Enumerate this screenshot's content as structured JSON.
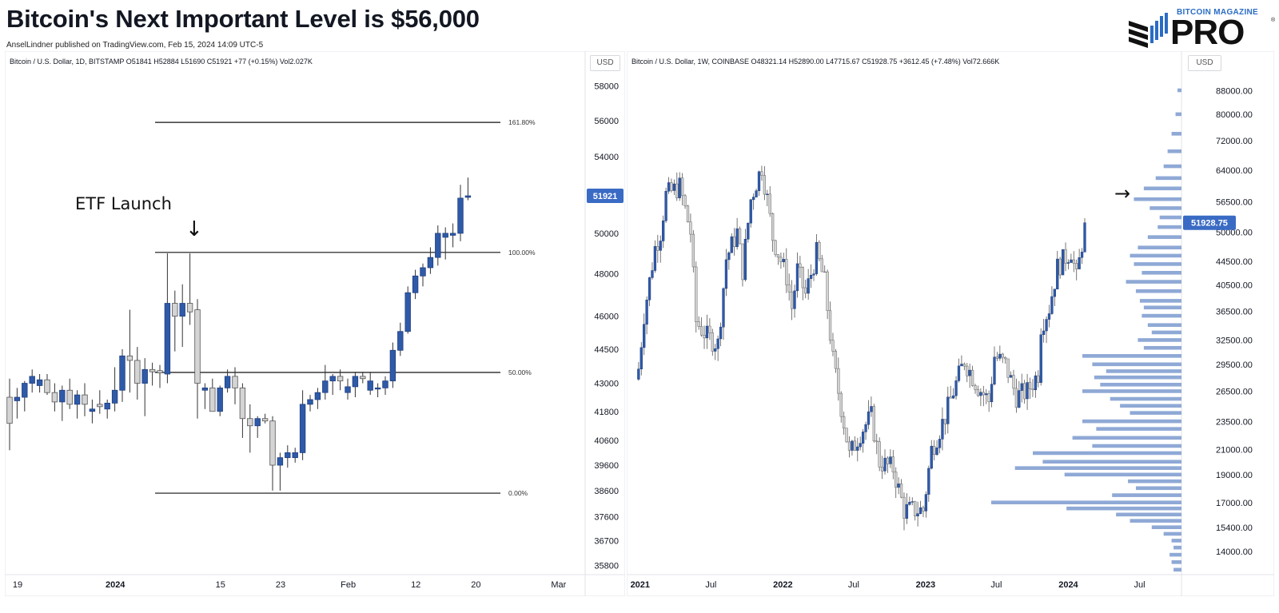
{
  "header": {
    "title": "Bitcoin's Next Important Level is $56,000",
    "subtitle": "AnselLindner published on TradingView.com, Feb 15, 2024 14:09 UTC-5"
  },
  "logo": {
    "top_text": "BITCOIN MAGAZINE",
    "main_text": "PRO",
    "reg_mark": "®",
    "colors": {
      "blue": "#2b6cc4",
      "dark": "#111111"
    }
  },
  "colors": {
    "up_candle": "#2f5aa8",
    "down_candle": "#d4d4d4",
    "wick": "#333333",
    "fib_line": "#111111",
    "price_badge": "#3a6bc4",
    "volume_profile": "#8fa9d6",
    "axis_border": "#e0e3eb"
  },
  "chart_data": [
    {
      "type": "candlestick",
      "symbol_legend": "Bitcoin / U.S. Dollar, 1D, BITSTAMP  O51841  H52884  L51690  C51921  +77 (+0.15%)  Vol2.027K",
      "currency_button": "USD",
      "last_price_label": "51921",
      "last_price": 51921,
      "y_ticks": [
        "58000",
        "56000",
        "54000",
        "52000",
        "50000",
        "48000",
        "46000",
        "44500",
        "43000",
        "41800",
        "40600",
        "39600",
        "38600",
        "37600",
        "36700",
        "35800"
      ],
      "y_tick_values": [
        58000,
        56000,
        54000,
        52000,
        50000,
        48000,
        46000,
        44500,
        43000,
        41800,
        40600,
        39600,
        38600,
        37600,
        36700,
        35800
      ],
      "y_scale": "log",
      "ylim": [
        35500,
        59000
      ],
      "x_ticks": [
        "19",
        "2024",
        "15",
        "23",
        "Feb",
        "12",
        "20",
        "Mar"
      ],
      "x_tick_bold": [
        false,
        true,
        false,
        false,
        false,
        false,
        false,
        false
      ],
      "x_tick_index": [
        0,
        13,
        27,
        35,
        44,
        53,
        61,
        72
      ],
      "candles": [
        [
          42400,
          43200,
          40200,
          41300
        ],
        [
          42250,
          42800,
          41500,
          42400
        ],
        [
          42400,
          43100,
          41800,
          43000
        ],
        [
          43000,
          43600,
          42600,
          43300
        ],
        [
          42900,
          43400,
          42600,
          43150
        ],
        [
          43150,
          43400,
          42500,
          42600
        ],
        [
          42600,
          43000,
          41800,
          42200
        ],
        [
          42200,
          42900,
          41400,
          42700
        ],
        [
          42700,
          43200,
          41900,
          42100
        ],
        [
          42100,
          42700,
          41500,
          42500
        ],
        [
          42500,
          43000,
          41600,
          42100
        ],
        [
          41800,
          42300,
          41300,
          41900
        ],
        [
          42100,
          42700,
          41700,
          42000
        ],
        [
          41900,
          42300,
          41500,
          42150
        ],
        [
          42150,
          43700,
          41800,
          42700
        ],
        [
          42700,
          44500,
          42200,
          44200
        ],
        [
          44200,
          46300,
          42600,
          44000
        ],
        [
          44000,
          44600,
          42300,
          43000
        ],
        [
          43000,
          44100,
          41600,
          43600
        ],
        [
          43600,
          43900,
          42900,
          43500
        ],
        [
          43550,
          43800,
          42800,
          43450
        ],
        [
          43400,
          49000,
          43000,
          46600
        ],
        [
          46600,
          47200,
          44400,
          46000
        ],
        [
          46000,
          47500,
          44600,
          46600
        ],
        [
          46600,
          49000,
          45600,
          46200
        ],
        [
          46300,
          46800,
          41500,
          43000
        ],
        [
          42700,
          43000,
          41900,
          42800
        ],
        [
          42800,
          43200,
          41900,
          41800
        ],
        [
          41800,
          42900,
          41600,
          42800
        ],
        [
          42800,
          43600,
          42600,
          43300
        ],
        [
          43300,
          43700,
          42100,
          42800
        ],
        [
          42800,
          43000,
          40700,
          41500
        ],
        [
          41500,
          42100,
          40100,
          41200
        ],
        [
          41200,
          41600,
          40700,
          41500
        ],
        [
          41500,
          41700,
          41300,
          41400
        ],
        [
          41400,
          41600,
          38600,
          39600
        ],
        [
          39600,
          40100,
          38600,
          39900
        ],
        [
          39900,
          40400,
          39500,
          40100
        ],
        [
          39900,
          40300,
          39700,
          40100
        ],
        [
          40100,
          42700,
          39800,
          42100
        ],
        [
          42100,
          42500,
          41800,
          42300
        ],
        [
          42300,
          42800,
          41900,
          42600
        ],
        [
          42600,
          43800,
          42300,
          43100
        ],
        [
          43100,
          43400,
          42500,
          43300
        ],
        [
          43300,
          43600,
          42700,
          43100
        ],
        [
          42600,
          43200,
          42300,
          42850
        ],
        [
          42850,
          43500,
          42400,
          43300
        ],
        [
          43300,
          43500,
          43000,
          43200
        ],
        [
          42700,
          43500,
          42500,
          43100
        ],
        [
          42750,
          43000,
          42400,
          42800
        ],
        [
          42800,
          43300,
          42500,
          43100
        ],
        [
          43100,
          44800,
          42800,
          44450
        ],
        [
          44450,
          45700,
          44200,
          45300
        ],
        [
          45300,
          47400,
          45200,
          47100
        ],
        [
          47100,
          48200,
          46800,
          47900
        ],
        [
          47900,
          48500,
          47400,
          48300
        ],
        [
          48300,
          49300,
          48000,
          48800
        ],
        [
          48800,
          50400,
          48400,
          50000
        ],
        [
          49800,
          50300,
          48700,
          50000
        ],
        [
          49900,
          50500,
          49300,
          50000
        ],
        [
          50000,
          52500,
          49600,
          51800
        ],
        [
          51841,
          52884,
          51690,
          51921
        ]
      ],
      "fib_levels": [
        {
          "label": "161.80%",
          "price": 55900
        },
        {
          "label": "100.00%",
          "price": 49048
        },
        {
          "label": "50.00%",
          "price": 43470
        },
        {
          "label": "0.00%",
          "price": 38500
        }
      ],
      "annotation": {
        "text": "ETF Launch",
        "arrow": "↓"
      }
    },
    {
      "type": "candlestick",
      "symbol_legend": "Bitcoin / U.S. Dollar, 1W, COINBASE  O48321.14  H52890.00  L47715.67  C51928.75  +3612.45 (+7.48%)  Vol72.666K",
      "currency_button": "USD",
      "last_price_label": "51928.75",
      "last_price": 51928.75,
      "y_ticks": [
        "88000.00",
        "80000.00",
        "72000.00",
        "64000.00",
        "56500.00",
        "50000.00",
        "44500.00",
        "40500.00",
        "36500.00",
        "32500.00",
        "29500.00",
        "26500.00",
        "23500.00",
        "21000.00",
        "19000.00",
        "17000.00",
        "15400.00",
        "14000.00"
      ],
      "y_tick_values": [
        88000,
        80000,
        72000,
        64000,
        56500,
        50000,
        44500,
        40500,
        36500,
        32500,
        29500,
        26500,
        23500,
        21000,
        19000,
        17000,
        15400,
        14000
      ],
      "y_scale": "log",
      "ylim": [
        12800,
        96000
      ],
      "x_ticks": [
        "2021",
        "Jul",
        "2022",
        "Jul",
        "2023",
        "Jul",
        "2024",
        "Jul"
      ],
      "x_tick_bold": [
        true,
        false,
        true,
        false,
        true,
        false,
        true,
        false
      ],
      "annotation": {
        "arrow": "→",
        "points_to": 56500
      },
      "weekly_close_path": [
        [
          "2020-12-28",
          29000
        ],
        [
          "2021-01-11",
          36000
        ],
        [
          "2021-02-08",
          47000
        ],
        [
          "2021-02-22",
          50000
        ],
        [
          "2021-03-08",
          58000
        ],
        [
          "2021-04-12",
          60000
        ],
        [
          "2021-05-10",
          50000
        ],
        [
          "2021-05-24",
          35000
        ],
        [
          "2021-06-21",
          33000
        ],
        [
          "2021-07-19",
          32000
        ],
        [
          "2021-08-09",
          45000
        ],
        [
          "2021-09-06",
          50000
        ],
        [
          "2021-09-20",
          43000
        ],
        [
          "2021-10-11",
          57000
        ],
        [
          "2021-10-25",
          61000
        ],
        [
          "2021-11-08",
          65000
        ],
        [
          "2021-11-22",
          57000
        ],
        [
          "2021-12-06",
          49000
        ],
        [
          "2022-01-10",
          42000
        ],
        [
          "2022-01-24",
          37000
        ],
        [
          "2022-02-07",
          43000
        ],
        [
          "2022-02-28",
          39000
        ],
        [
          "2022-03-28",
          46000
        ],
        [
          "2022-04-18",
          41000
        ],
        [
          "2022-05-09",
          30000
        ],
        [
          "2022-06-13",
          22000
        ],
        [
          "2022-06-20",
          20500
        ],
        [
          "2022-07-18",
          22500
        ],
        [
          "2022-08-15",
          24000
        ],
        [
          "2022-09-05",
          20000
        ],
        [
          "2022-10-10",
          19500
        ],
        [
          "2022-11-07",
          16500
        ],
        [
          "2022-12-26",
          16500
        ],
        [
          "2023-01-16",
          21000
        ],
        [
          "2023-02-20",
          24000
        ],
        [
          "2023-03-13",
          26500
        ],
        [
          "2023-04-10",
          30000
        ],
        [
          "2023-05-15",
          27000
        ],
        [
          "2023-06-12",
          25500
        ],
        [
          "2023-06-26",
          30500
        ],
        [
          "2023-07-24",
          29500
        ],
        [
          "2023-08-21",
          26000
        ],
        [
          "2023-09-18",
          26500
        ],
        [
          "2023-10-16",
          28500
        ],
        [
          "2023-10-23",
          34500
        ],
        [
          "2023-11-13",
          37000
        ],
        [
          "2023-12-04",
          43500
        ],
        [
          "2024-01-08",
          46500
        ],
        [
          "2024-01-22",
          41500
        ],
        [
          "2024-02-05",
          47800
        ],
        [
          "2024-02-12",
          51928
        ]
      ],
      "volume_profile": {
        "price_rows": [
          88000,
          80000,
          74000,
          69000,
          65000,
          62000,
          59500,
          57000,
          55000,
          53000,
          51000,
          49000,
          47000,
          45500,
          44000,
          42500,
          41000,
          39500,
          38000,
          37000,
          35800,
          34500,
          33500,
          32500,
          31500,
          30500,
          29500,
          28700,
          28000,
          27200,
          26500,
          25700,
          25000,
          24300,
          23500,
          22800,
          22000,
          21300,
          20700,
          20000,
          19500,
          19000,
          18500,
          18000,
          17500,
          17000,
          16600,
          16200,
          15800,
          15400,
          15000,
          14600,
          14200,
          13800,
          13400,
          13000
        ],
        "relative_volume": [
          0.02,
          0.03,
          0.05,
          0.07,
          0.09,
          0.13,
          0.19,
          0.24,
          0.16,
          0.11,
          0.12,
          0.17,
          0.22,
          0.26,
          0.24,
          0.2,
          0.28,
          0.23,
          0.21,
          0.19,
          0.2,
          0.17,
          0.15,
          0.22,
          0.19,
          0.5,
          0.45,
          0.38,
          0.44,
          0.41,
          0.5,
          0.36,
          0.31,
          0.26,
          0.5,
          0.43,
          0.55,
          0.45,
          0.75,
          0.7,
          0.84,
          0.59,
          0.27,
          0.23,
          0.35,
          0.96,
          0.58,
          0.33,
          0.26,
          0.15,
          0.09,
          0.05,
          0.04,
          0.06,
          0.05,
          0.04
        ]
      }
    }
  ]
}
